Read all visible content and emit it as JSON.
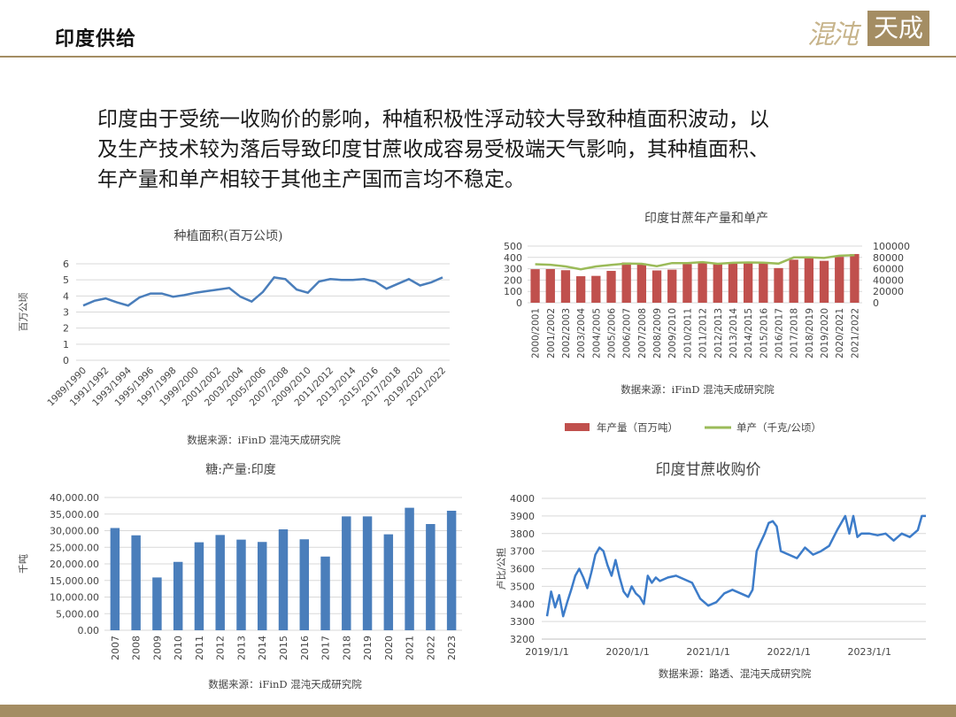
{
  "header": {
    "title": "印度供给"
  },
  "logo": {
    "script_text": "混沌",
    "box_text": "天成"
  },
  "intro": {
    "lines": [
      "印度由于受统一收购价的影响，种植积极性浮动较大导致种植面积波动，以",
      "及生产技术较为落后导致印度甘蔗收成容易受极端天气影响，其种植面积、",
      "年产量和单产相较于其他主产国而言均不稳定。"
    ]
  },
  "colors": {
    "accent": "#a48d63",
    "blue": "#4a7ebb",
    "red": "#c0504d",
    "green": "#9bbb59",
    "line_blue": "#3d7cc9"
  },
  "chart_data": [
    {
      "id": "area",
      "type": "line",
      "title": "种植面积(百万公顷)",
      "ylabel": "百万公顷",
      "xlabel": "",
      "source": "数据来源：iFinD 混沌天成研究院",
      "ylim": [
        0,
        6
      ],
      "yticks": [
        0,
        1,
        2,
        3,
        4,
        5,
        6
      ],
      "grid": true,
      "x_tick_labels": [
        "1989/1990",
        "1991/1992",
        "1993/1994",
        "1995/1996",
        "1997/1998",
        "1999/2000",
        "2001/2002",
        "2003/2004",
        "2005/2006",
        "2007/2008",
        "2009/2010",
        "2011/2012",
        "2013/2014",
        "2015/2016",
        "2017/2018",
        "2019/2020",
        "2021/2022"
      ],
      "series": [
        {
          "values": [
            3.4,
            3.7,
            3.85,
            3.6,
            3.4,
            3.9,
            4.15,
            4.15,
            3.95,
            4.05,
            4.2,
            4.3,
            4.4,
            4.5,
            3.95,
            3.65,
            4.25,
            5.15,
            5.05,
            4.4,
            4.2,
            4.9,
            5.05,
            5.0,
            5.0,
            5.05,
            4.9,
            4.45,
            4.75,
            5.05,
            4.65,
            4.85,
            5.15
          ]
        }
      ]
    },
    {
      "id": "prod_yield",
      "type": "bar",
      "title": "印度甘蔗年产量和单产",
      "source": "数据来源：iFinD 混沌天成研究院",
      "categories": [
        "2000/2001",
        "2001/2002",
        "2002/2003",
        "2003/2004",
        "2004/2005",
        "2005/2006",
        "2006/2007",
        "2007/2008",
        "2008/2009",
        "2009/2010",
        "2010/2011",
        "2011/2012",
        "2012/2013",
        "2013/2014",
        "2014/2015",
        "2015/2016",
        "2016/2017",
        "2017/2018",
        "2018/2019",
        "2019/2020",
        "2020/2021",
        "2021/2022"
      ],
      "ylim_left": [
        0,
        500
      ],
      "yticks_left": [
        0,
        100,
        200,
        300,
        400,
        500
      ],
      "ylim_right": [
        0,
        100000
      ],
      "yticks_right": [
        0,
        20000,
        40000,
        60000,
        80000,
        100000
      ],
      "legend_position": "bottom",
      "series": [
        {
          "name": "年产量（百万吨）",
          "kind": "bar",
          "axis": "left",
          "values": [
            296,
            297,
            287,
            234,
            237,
            281,
            355,
            348,
            285,
            292,
            342,
            361,
            341,
            352,
            362,
            348,
            306,
            380,
            400,
            370,
            405,
            430
          ]
        },
        {
          "name": "单产（千克/公顷）",
          "kind": "line",
          "axis": "right",
          "values": [
            68000,
            67000,
            64000,
            59000,
            64000,
            66700,
            69000,
            68800,
            64600,
            70000,
            70000,
            71700,
            68800,
            70500,
            71100,
            70700,
            69000,
            80000,
            80000,
            79000,
            83000,
            84000
          ]
        }
      ]
    },
    {
      "id": "sugar",
      "type": "bar",
      "title": "糖:产量:印度",
      "ylabel": "千吨",
      "source": "数据来源：iFinD 混沌天成研究院",
      "categories": [
        "2007",
        "2008",
        "2009",
        "2010",
        "2011",
        "2012",
        "2013",
        "2014",
        "2015",
        "2016",
        "2017",
        "2018",
        "2019",
        "2020",
        "2021",
        "2022",
        "2023"
      ],
      "ylim": [
        0,
        40000
      ],
      "ytick_labels": [
        "0.00",
        "5,000.00",
        "10,000.00",
        "15,000.00",
        "20,000.00",
        "25,000.00",
        "30,000.00",
        "35,000.00",
        "40,000.00"
      ],
      "grid": true,
      "series": [
        {
          "values": [
            30800,
            28600,
            15900,
            20600,
            26500,
            28700,
            27300,
            26600,
            30400,
            27400,
            22200,
            34300,
            34300,
            28900,
            36900,
            32000,
            36000
          ]
        }
      ]
    },
    {
      "id": "price",
      "type": "line",
      "title": "印度甘蔗收购价",
      "ylabel": "卢比/公担",
      "source": "数据来源：路透、混沌天成研究院",
      "ylim": [
        3200,
        4000
      ],
      "yticks": [
        3200,
        3300,
        3400,
        3500,
        3600,
        3700,
        3800,
        3900,
        4000
      ],
      "x_tick_labels": [
        "2019/1/1",
        "2020/1/1",
        "2021/1/1",
        "2022/1/1",
        "2023/1/1"
      ],
      "grid": true,
      "series": [
        {
          "points": [
            [
              0,
              3330
            ],
            [
              0.05,
              3470
            ],
            [
              0.1,
              3380
            ],
            [
              0.15,
              3450
            ],
            [
              0.2,
              3330
            ],
            [
              0.25,
              3410
            ],
            [
              0.3,
              3480
            ],
            [
              0.35,
              3560
            ],
            [
              0.4,
              3600
            ],
            [
              0.45,
              3550
            ],
            [
              0.5,
              3490
            ],
            [
              0.55,
              3580
            ],
            [
              0.6,
              3680
            ],
            [
              0.65,
              3720
            ],
            [
              0.7,
              3700
            ],
            [
              0.75,
              3620
            ],
            [
              0.8,
              3560
            ],
            [
              0.85,
              3650
            ],
            [
              0.9,
              3550
            ],
            [
              0.95,
              3470
            ],
            [
              1.0,
              3440
            ],
            [
              1.05,
              3500
            ],
            [
              1.1,
              3460
            ],
            [
              1.15,
              3440
            ],
            [
              1.2,
              3400
            ],
            [
              1.25,
              3560
            ],
            [
              1.3,
              3520
            ],
            [
              1.35,
              3550
            ],
            [
              1.4,
              3530
            ],
            [
              1.5,
              3550
            ],
            [
              1.6,
              3560
            ],
            [
              1.7,
              3540
            ],
            [
              1.8,
              3520
            ],
            [
              1.9,
              3430
            ],
            [
              2.0,
              3390
            ],
            [
              2.1,
              3410
            ],
            [
              2.2,
              3460
            ],
            [
              2.3,
              3480
            ],
            [
              2.4,
              3460
            ],
            [
              2.5,
              3440
            ],
            [
              2.55,
              3480
            ],
            [
              2.6,
              3700
            ],
            [
              2.65,
              3750
            ],
            [
              2.7,
              3800
            ],
            [
              2.75,
              3860
            ],
            [
              2.8,
              3870
            ],
            [
              2.85,
              3840
            ],
            [
              2.9,
              3700
            ],
            [
              3.0,
              3680
            ],
            [
              3.1,
              3660
            ],
            [
              3.2,
              3720
            ],
            [
              3.3,
              3680
            ],
            [
              3.4,
              3700
            ],
            [
              3.5,
              3730
            ],
            [
              3.6,
              3820
            ],
            [
              3.7,
              3900
            ],
            [
              3.75,
              3800
            ],
            [
              3.8,
              3900
            ],
            [
              3.85,
              3780
            ],
            [
              3.9,
              3800
            ],
            [
              4.0,
              3800
            ],
            [
              4.1,
              3790
            ],
            [
              4.2,
              3800
            ],
            [
              4.3,
              3760
            ],
            [
              4.4,
              3800
            ],
            [
              4.5,
              3780
            ],
            [
              4.6,
              3820
            ],
            [
              4.65,
              3900
            ],
            [
              4.7,
              3900
            ]
          ]
        }
      ]
    }
  ]
}
